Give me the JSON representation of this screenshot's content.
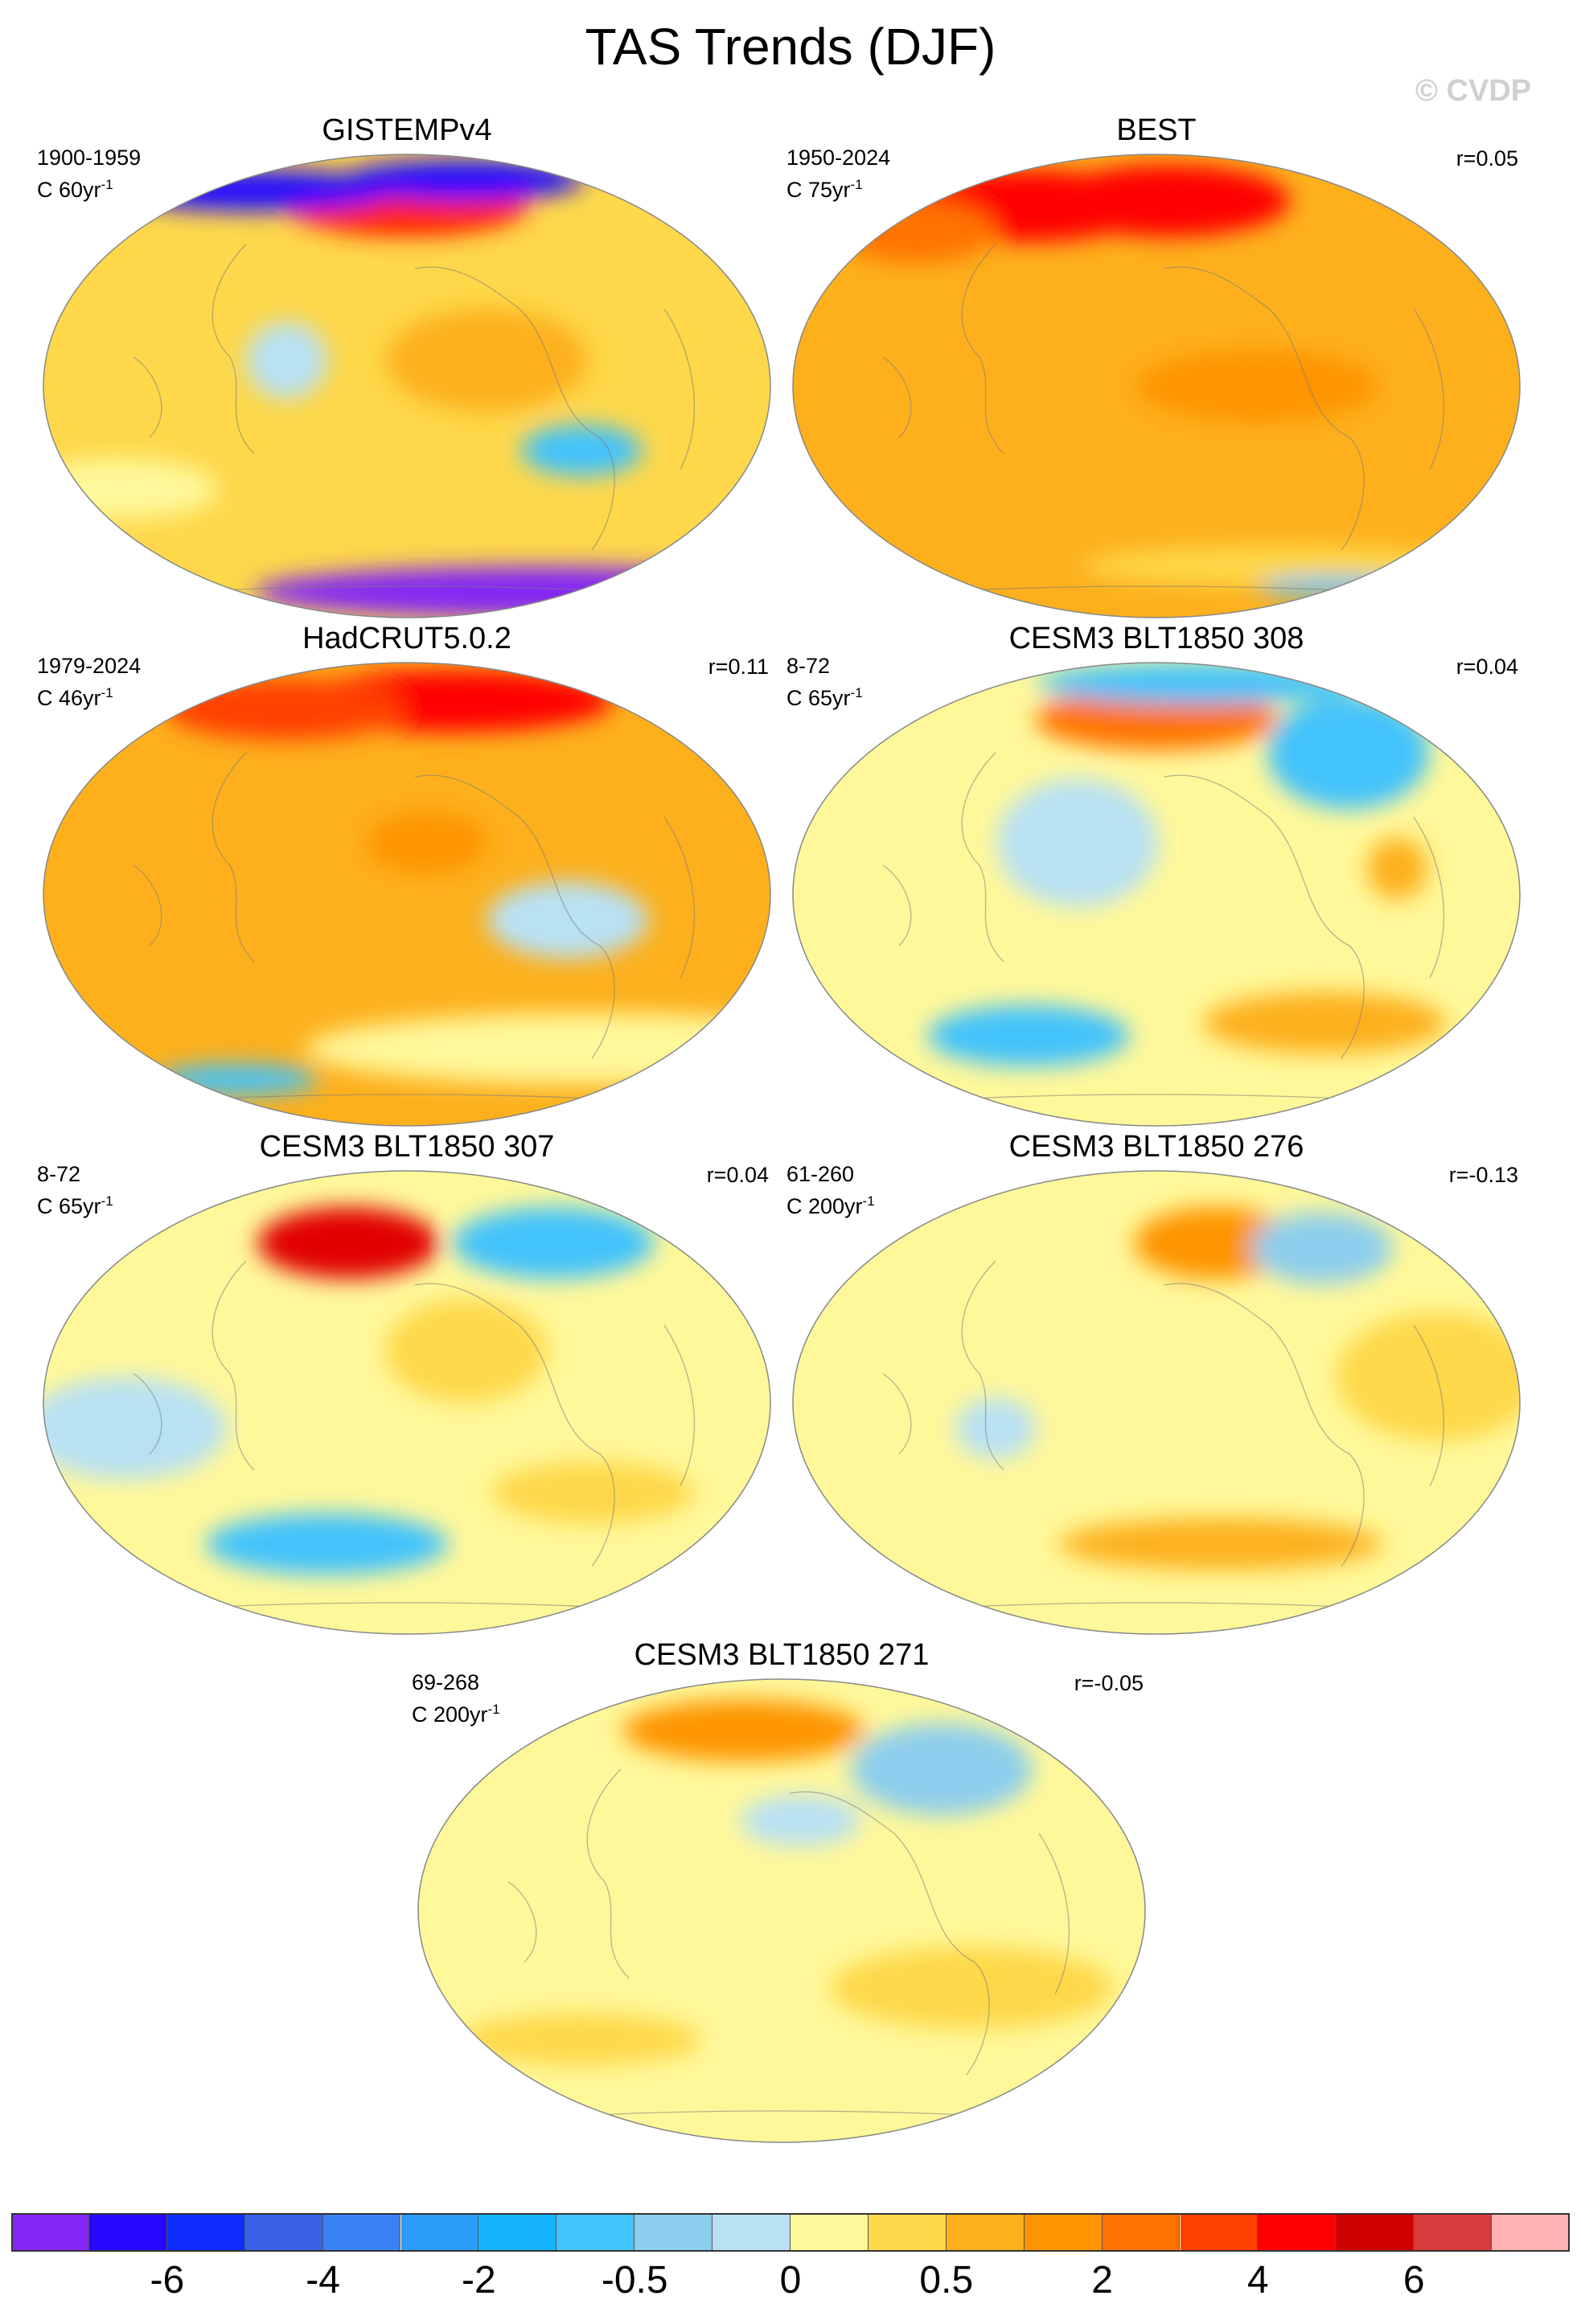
{
  "title": "TAS Trends (DJF)",
  "watermark": "© CVDP",
  "panels": [
    {
      "title": "GISTEMPv4",
      "period": "1900-1959",
      "unit_prefix": "C 60yr",
      "unit_sup": "-1",
      "corr": "",
      "base": "#fed84a",
      "lon_shift": 0,
      "blobs": [
        {
          "lon": -160,
          "lat": 70,
          "rx": 60,
          "ry": 12,
          "c": "#ff2000"
        },
        {
          "lon": 60,
          "lat": 76,
          "rx": 70,
          "ry": 8,
          "c": "#2408ff"
        },
        {
          "lon": -100,
          "lat": 80,
          "rx": 60,
          "ry": 8,
          "c": "#2408ff"
        },
        {
          "lon": -20,
          "lat": -80,
          "rx": 140,
          "ry": 10,
          "c": "#8426f4"
        },
        {
          "lon": -70,
          "lat": -25,
          "rx": 30,
          "ry": 10,
          "c": "#42c3fb"
        },
        {
          "lon": 140,
          "lat": 10,
          "rx": 20,
          "ry": 15,
          "c": "#b8e1f4"
        },
        {
          "lon": -120,
          "lat": 10,
          "rx": 50,
          "ry": 20,
          "c": "#fdb01c"
        },
        {
          "lon": 40,
          "lat": -40,
          "rx": 50,
          "ry": 12,
          "c": "#fff89a"
        }
      ]
    },
    {
      "title": "BEST",
      "period": "1950-2024",
      "unit_prefix": "C 75yr",
      "unit_sup": "-1",
      "corr": "r=0.05",
      "base": "#fdb01c",
      "lon_shift": 0,
      "blobs": [
        {
          "lon": -150,
          "lat": 72,
          "rx": 60,
          "ry": 14,
          "c": "#fe0000"
        },
        {
          "lon": 100,
          "lat": 70,
          "rx": 60,
          "ry": 14,
          "c": "#fe0000"
        },
        {
          "lon": 40,
          "lat": 60,
          "rx": 40,
          "ry": 12,
          "c": "#ff7300"
        },
        {
          "lon": -60,
          "lat": -70,
          "rx": 100,
          "ry": 8,
          "c": "#fed84a"
        },
        {
          "lon": 20,
          "lat": -78,
          "rx": 40,
          "ry": 4,
          "c": "#42c3fb"
        },
        {
          "lon": -110,
          "lat": 0,
          "rx": 60,
          "ry": 14,
          "c": "#fe9400"
        }
      ]
    },
    {
      "title": "HadCRUT5.0.2",
      "period": "1979-2024",
      "unit_prefix": "C 46yr",
      "unit_sup": "-1",
      "corr": "r=0.11",
      "base": "#fdb01c",
      "lon_shift": 0,
      "blobs": [
        {
          "lon": -120,
          "lat": 75,
          "rx": 80,
          "ry": 12,
          "c": "#fe0000"
        },
        {
          "lon": 100,
          "lat": 72,
          "rx": 60,
          "ry": 12,
          "c": "#ff4000"
        },
        {
          "lon": -80,
          "lat": -10,
          "rx": 40,
          "ry": 15,
          "c": "#b8e1f4"
        },
        {
          "lon": -40,
          "lat": -60,
          "rx": 140,
          "ry": 14,
          "c": "#fff89a"
        },
        {
          "lon": 60,
          "lat": -72,
          "rx": 40,
          "ry": 6,
          "c": "#42c3fb"
        },
        {
          "lon": -150,
          "lat": 20,
          "rx": 30,
          "ry": 12,
          "c": "#fe9400"
        }
      ]
    },
    {
      "title": "CESM3 BLT1850 308",
      "period": "8-72",
      "unit_prefix": "C 65yr",
      "unit_sup": "-1",
      "corr": "r=0.04",
      "base": "#fff89a",
      "lon_shift": 0,
      "blobs": [
        {
          "lon": -160,
          "lat": 68,
          "rx": 60,
          "ry": 12,
          "c": "#ff7300"
        },
        {
          "lon": -40,
          "lat": 55,
          "rx": 40,
          "ry": 22,
          "c": "#42c3fb"
        },
        {
          "lon": -110,
          "lat": 82,
          "rx": 80,
          "ry": 8,
          "c": "#42c3fb"
        },
        {
          "lon": 160,
          "lat": 20,
          "rx": 40,
          "ry": 25,
          "c": "#b8e1f4"
        },
        {
          "lon": -60,
          "lat": -50,
          "rx": 60,
          "ry": 12,
          "c": "#fdb01c"
        },
        {
          "lon": 120,
          "lat": -55,
          "rx": 50,
          "ry": 12,
          "c": "#42c3fb"
        },
        {
          "lon": -40,
          "lat": 10,
          "rx": 15,
          "ry": 12,
          "c": "#fdb01c"
        }
      ]
    },
    {
      "title": "CESM3 BLT1850 307",
      "period": "8-72",
      "unit_prefix": "C 65yr",
      "unit_sup": "-1",
      "corr": "r=0.04",
      "base": "#fff89a",
      "lon_shift": 0,
      "blobs": [
        {
          "lon": 160,
          "lat": 62,
          "rx": 45,
          "ry": 14,
          "c": "#e10000"
        },
        {
          "lon": -60,
          "lat": 62,
          "rx": 50,
          "ry": 14,
          "c": "#42c3fb"
        },
        {
          "lon": -130,
          "lat": 20,
          "rx": 40,
          "ry": 20,
          "c": "#fed84a"
        },
        {
          "lon": 150,
          "lat": -55,
          "rx": 60,
          "ry": 12,
          "c": "#42c3fb"
        },
        {
          "lon": -60,
          "lat": -35,
          "rx": 50,
          "ry": 12,
          "c": "#fed84a"
        },
        {
          "lon": 60,
          "lat": -10,
          "rx": 50,
          "ry": 20,
          "c": "#b8e1f4"
        }
      ]
    },
    {
      "title": "CESM3 BLT1850 276",
      "period": "61-260",
      "unit_prefix": "C 200yr",
      "unit_sup": "-1",
      "corr": "r=-0.13",
      "base": "#fff89a",
      "lon_shift": 0,
      "blobs": [
        {
          "lon": -120,
          "lat": 62,
          "rx": 40,
          "ry": 14,
          "c": "#fe9400"
        },
        {
          "lon": -50,
          "lat": 60,
          "rx": 35,
          "ry": 14,
          "c": "#8cceed"
        },
        {
          "lon": -120,
          "lat": -55,
          "rx": 80,
          "ry": 10,
          "c": "#fdb01c"
        },
        {
          "lon": -20,
          "lat": 10,
          "rx": 50,
          "ry": 25,
          "c": "#fed84a"
        },
        {
          "lon": 120,
          "lat": -10,
          "rx": 20,
          "ry": 12,
          "c": "#b8e1f4"
        }
      ]
    },
    {
      "title": "CESM3 BLT1850 271",
      "period": "69-268",
      "unit_prefix": "C 200yr",
      "unit_sup": "-1",
      "corr": "r=-0.05",
      "base": "#fff89a",
      "lon_shift": 0,
      "blobs": [
        {
          "lon": -60,
          "lat": 55,
          "rx": 45,
          "ry": 18,
          "c": "#8cceed"
        },
        {
          "lon": 170,
          "lat": 70,
          "rx": 60,
          "ry": 12,
          "c": "#fe9400"
        },
        {
          "lon": -150,
          "lat": 35,
          "rx": 30,
          "ry": 10,
          "c": "#b8e1f4"
        },
        {
          "lon": -60,
          "lat": -30,
          "rx": 70,
          "ry": 16,
          "c": "#fed84a"
        },
        {
          "lon": 80,
          "lat": -50,
          "rx": 60,
          "ry": 10,
          "c": "#fed84a"
        }
      ]
    }
  ],
  "colorbar": {
    "colors": [
      "#8426f4",
      "#2408ff",
      "#0d2dfc",
      "#3961e5",
      "#3a82f6",
      "#2b9cfa",
      "#14b4fc",
      "#42c3fb",
      "#8cceed",
      "#b8e1f4",
      "#fff89a",
      "#fed84a",
      "#fdb01c",
      "#fe9400",
      "#ff7300",
      "#ff4000",
      "#fe0000",
      "#cf0000",
      "#d83b3b",
      "#ffb3b3"
    ],
    "tick_labels": [
      "-6",
      "-4",
      "-2",
      "-0.5",
      "0",
      "0.5",
      "2",
      "4",
      "6"
    ]
  }
}
